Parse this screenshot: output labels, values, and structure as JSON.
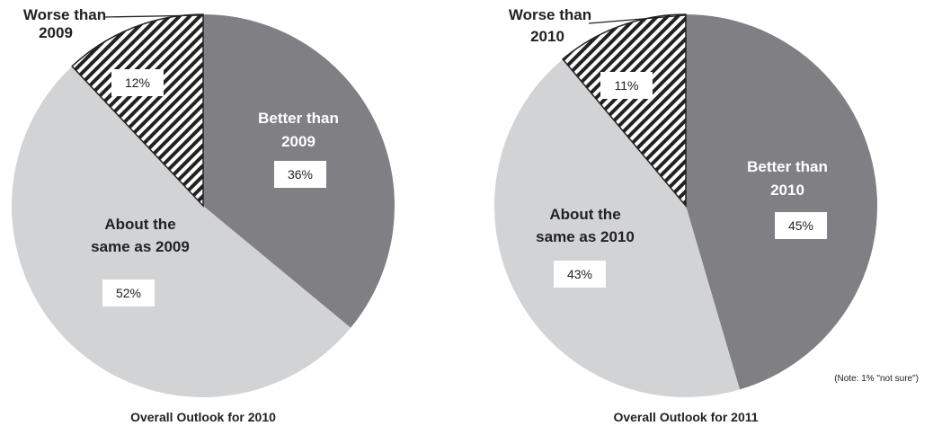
{
  "chart_data": [
    {
      "type": "pie",
      "title": "Overall Outlook for 2010",
      "note": "",
      "slices": [
        {
          "label": [
            "Better than",
            "2009"
          ],
          "value": 36,
          "value_label": "36%",
          "color": "#808084"
        },
        {
          "label": [
            "About the",
            "same as 2009"
          ],
          "value": 52,
          "value_label": "52%",
          "color": "#d2d3d5"
        },
        {
          "label": [
            "Worse than",
            "2009"
          ],
          "value": 12,
          "value_label": "12%",
          "color": "hatched"
        }
      ]
    },
    {
      "type": "pie",
      "title": "Overall Outlook for 2011",
      "note": "(Note: 1% \"not sure\")",
      "slices": [
        {
          "label": [
            "Better than",
            "2010"
          ],
          "value": 45,
          "value_label": "45%",
          "color": "#808084"
        },
        {
          "label": [
            "About the",
            "same as 2010"
          ],
          "value": 43,
          "value_label": "43%",
          "color": "#d2d3d5"
        },
        {
          "label": [
            "Worse than",
            "2010"
          ],
          "value": 11,
          "value_label": "11%",
          "color": "hatched"
        }
      ]
    }
  ]
}
